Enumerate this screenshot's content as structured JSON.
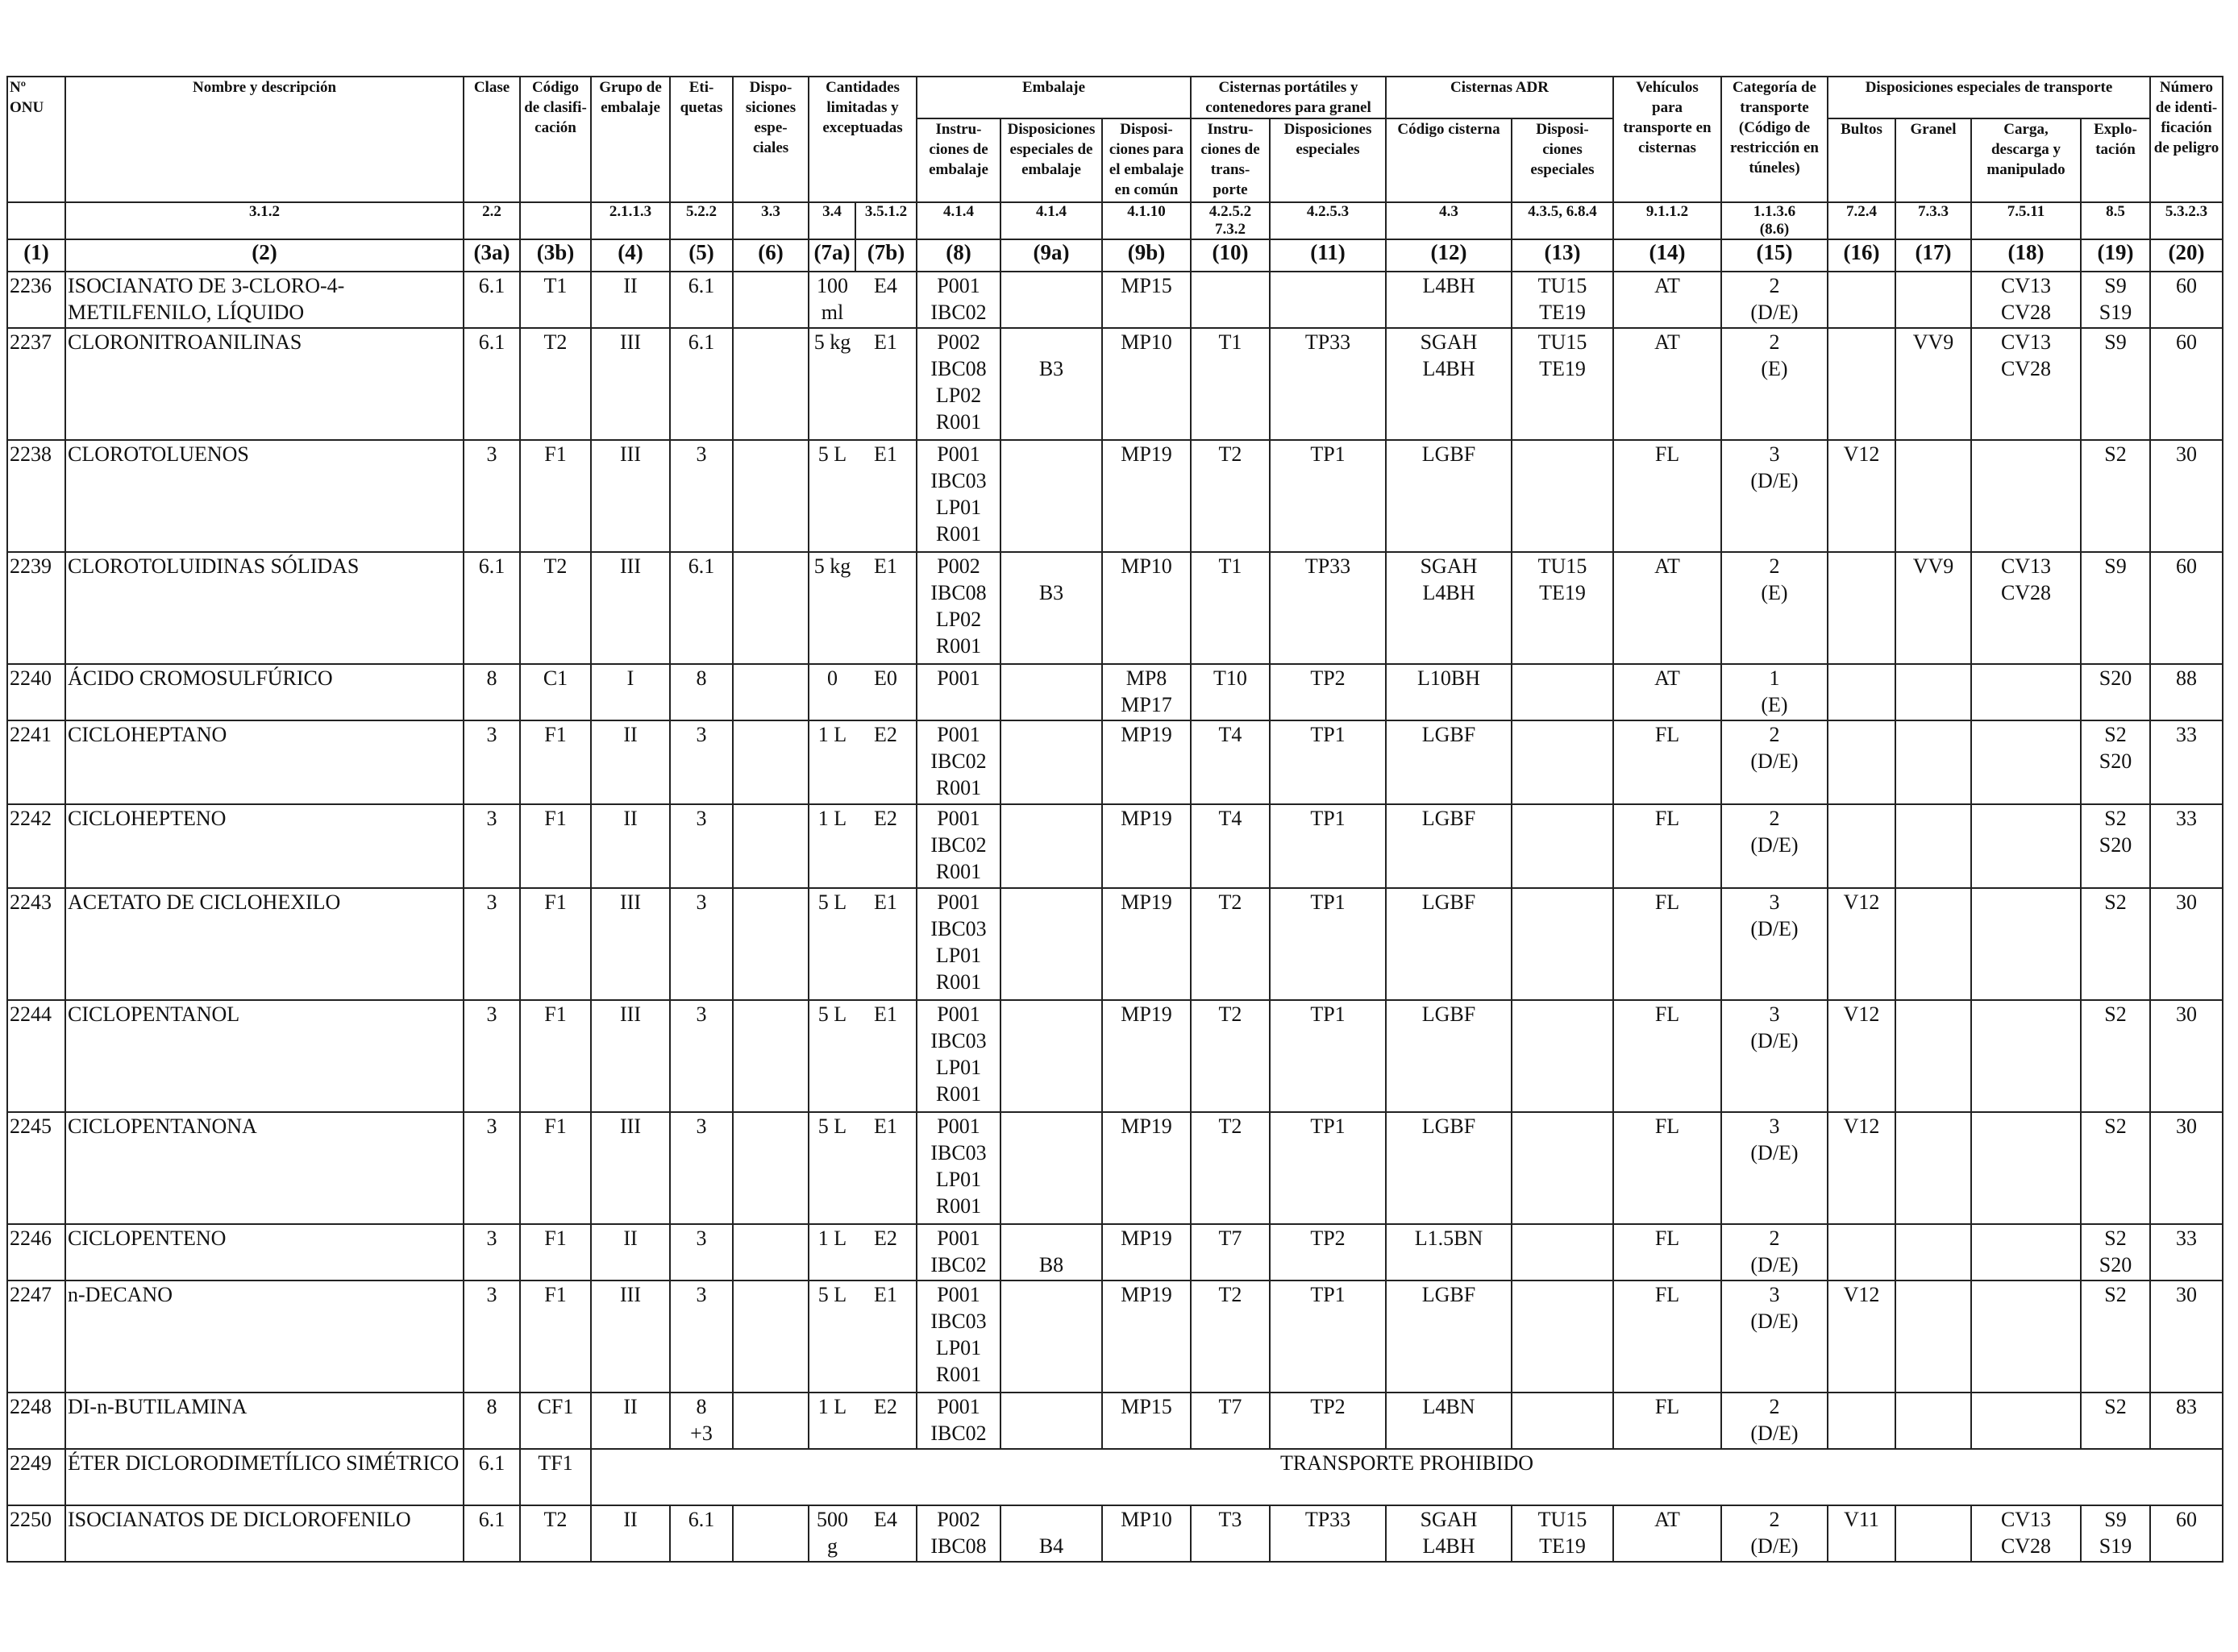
{
  "headers": {
    "onu": "Nº\nONU",
    "name": "Nombre y descripción",
    "clase": "Clase",
    "codigo": "Código\nde clasifi-\ncación",
    "grupo": "Grupo de\nembalaje",
    "etiquetas": "Eti-\nquetas",
    "disp_esp": "Dispo-\nsiciones\nespe-\nciales",
    "cantidades": "Cantidades\nlimitadas y\nexceptuadas",
    "embalaje": "Embalaje",
    "instr_emb": "Instru-\nciones de\nembalaje",
    "disp_emb": "Disposiciones\nespeciales de\nembalaje",
    "disp_comun": "Disposi-\nciones para\nel embalaje\nen común",
    "cisternas_port": "Cisternas portátiles y\ncontenedores para granel",
    "instr_trans": "Instru-\nciones de\ntrans-\nporte",
    "disp_cist": "Disposiciones\nespeciales",
    "cisternas_adr": "Cisternas ADR",
    "cod_cisterna": "Código cisterna",
    "disp_cist_adr": "Disposi-\nciones\nespeciales",
    "vehiculos": "Vehículos\npara\ntransporte en\ncisternas",
    "categoria": "Categoría de\ntransporte\n(Código de\nrestricción en\ntúneles)",
    "disp_transporte": "Disposiciones especiales de transporte",
    "bultos": "Bultos",
    "granel": "Granel",
    "carga": "Carga,\ndescarga y\nmanipulado",
    "explotacion": "Explo-\ntación",
    "numero_id": "Número\nde identi-\nficación\nde peligro"
  },
  "refs": [
    "",
    "3.1.2",
    "2.2",
    "",
    "2.1.1.3",
    "5.2.2",
    "3.3",
    "3.4",
    "3.5.1.2",
    "4.1.4",
    "4.1.4",
    "4.1.10",
    "4.2.5.2\n7.3.2",
    "4.2.5.3",
    "4.3",
    "4.3.5, 6.8.4",
    "9.1.1.2",
    "1.1.3.6\n(8.6)",
    "7.2.4",
    "7.3.3",
    "7.5.11",
    "8.5",
    "5.3.2.3"
  ],
  "column_numbers": [
    "(1)",
    "(2)",
    "(3a)",
    "(3b)",
    "(4)",
    "(5)",
    "(6)",
    "(7a)",
    "(7b)",
    "(8)",
    "(9a)",
    "(9b)",
    "(10)",
    "(11)",
    "(12)",
    "(13)",
    "(14)",
    "(15)",
    "(16)",
    "(17)",
    "(18)",
    "(19)",
    "(20)"
  ],
  "prohibited_text": "TRANSPORTE PROHIBIDO",
  "rows": [
    {
      "c1": "2236",
      "c2": "ISOCIANATO DE 3-CLORO-4-\nMETILFENILO, LÍQUIDO",
      "c3a": "6.1",
      "c3b": "T1",
      "c4": "II",
      "c5": "6.1",
      "c6": "",
      "c7a": "100\nml",
      "c7b": "E4",
      "c8": "P001\nIBC02",
      "c9a": "",
      "c9b": "MP15",
      "c10": "",
      "c11": "",
      "c12": "L4BH",
      "c13": "TU15\nTE19",
      "c14": "AT",
      "c15": "2\n(D/E)",
      "c16": "",
      "c17": "",
      "c18": "CV13\nCV28",
      "c19": "S9\nS19",
      "c20": "60"
    },
    {
      "c1": "2237",
      "c2": "CLORONITROANILINAS",
      "c3a": "6.1",
      "c3b": "T2",
      "c4": "III",
      "c5": "6.1",
      "c6": "",
      "c7a": "5 kg",
      "c7b": "E1",
      "c8": "P002\nIBC08\nLP02\nR001",
      "c9a": "\nB3",
      "c9b": "MP10",
      "c10": "T1",
      "c11": "TP33",
      "c12": "SGAH\nL4BH",
      "c13": "TU15\nTE19",
      "c14": "AT",
      "c15": "2\n(E)",
      "c16": "",
      "c17": "VV9",
      "c18": "CV13\nCV28",
      "c19": "S9",
      "c20": "60"
    },
    {
      "c1": "2238",
      "c2": "CLOROTOLUENOS",
      "c3a": "3",
      "c3b": "F1",
      "c4": "III",
      "c5": "3",
      "c6": "",
      "c7a": "5 L",
      "c7b": "E1",
      "c8": "P001\nIBC03\nLP01\nR001",
      "c9a": "",
      "c9b": "MP19",
      "c10": "T2",
      "c11": "TP1",
      "c12": "LGBF",
      "c13": "",
      "c14": "FL",
      "c15": "3\n(D/E)",
      "c16": "V12",
      "c17": "",
      "c18": "",
      "c19": "S2",
      "c20": "30"
    },
    {
      "c1": "2239",
      "c2": "CLOROTOLUIDINAS SÓLIDAS",
      "c3a": "6.1",
      "c3b": "T2",
      "c4": "III",
      "c5": "6.1",
      "c6": "",
      "c7a": "5 kg",
      "c7b": "E1",
      "c8": "P002\nIBC08\nLP02\nR001",
      "c9a": "\nB3",
      "c9b": "MP10",
      "c10": "T1",
      "c11": "TP33",
      "c12": "SGAH\nL4BH",
      "c13": "TU15\nTE19",
      "c14": "AT",
      "c15": "2\n(E)",
      "c16": "",
      "c17": "VV9",
      "c18": "CV13\nCV28",
      "c19": "S9",
      "c20": "60"
    },
    {
      "c1": "2240",
      "c2": "ÁCIDO CROMOSULFÚRICO",
      "c3a": "8",
      "c3b": "C1",
      "c4": "I",
      "c5": "8",
      "c6": "",
      "c7a": "0",
      "c7b": "E0",
      "c8": "P001",
      "c9a": "",
      "c9b": "MP8\nMP17",
      "c10": "T10",
      "c11": "TP2",
      "c12": "L10BH",
      "c13": "",
      "c14": "AT",
      "c15": "1\n(E)",
      "c16": "",
      "c17": "",
      "c18": "",
      "c19": "S20",
      "c20": "88"
    },
    {
      "c1": "2241",
      "c2": "CICLOHEPTANO",
      "c3a": "3",
      "c3b": "F1",
      "c4": "II",
      "c5": "3",
      "c6": "",
      "c7a": "1 L",
      "c7b": "E2",
      "c8": "P001\nIBC02\nR001",
      "c9a": "",
      "c9b": "MP19",
      "c10": "T4",
      "c11": "TP1",
      "c12": "LGBF",
      "c13": "",
      "c14": "FL",
      "c15": "2\n(D/E)",
      "c16": "",
      "c17": "",
      "c18": "",
      "c19": "S2\nS20",
      "c20": "33"
    },
    {
      "c1": "2242",
      "c2": "CICLOHEPTENO",
      "c3a": "3",
      "c3b": "F1",
      "c4": "II",
      "c5": "3",
      "c6": "",
      "c7a": "1 L",
      "c7b": "E2",
      "c8": "P001\nIBC02\nR001",
      "c9a": "",
      "c9b": "MP19",
      "c10": "T4",
      "c11": "TP1",
      "c12": "LGBF",
      "c13": "",
      "c14": "FL",
      "c15": "2\n(D/E)",
      "c16": "",
      "c17": "",
      "c18": "",
      "c19": "S2\nS20",
      "c20": "33"
    },
    {
      "c1": "2243",
      "c2": "ACETATO DE CICLOHEXILO",
      "c3a": "3",
      "c3b": "F1",
      "c4": "III",
      "c5": "3",
      "c6": "",
      "c7a": "5 L",
      "c7b": "E1",
      "c8": "P001\nIBC03\nLP01\nR001",
      "c9a": "",
      "c9b": "MP19",
      "c10": "T2",
      "c11": "TP1",
      "c12": "LGBF",
      "c13": "",
      "c14": "FL",
      "c15": "3\n(D/E)",
      "c16": "V12",
      "c17": "",
      "c18": "",
      "c19": "S2",
      "c20": "30"
    },
    {
      "c1": "2244",
      "c2": "CICLOPENTANOL",
      "c3a": "3",
      "c3b": "F1",
      "c4": "III",
      "c5": "3",
      "c6": "",
      "c7a": "5 L",
      "c7b": "E1",
      "c8": "P001\nIBC03\nLP01\nR001",
      "c9a": "",
      "c9b": "MP19",
      "c10": "T2",
      "c11": "TP1",
      "c12": "LGBF",
      "c13": "",
      "c14": "FL",
      "c15": "3\n(D/E)",
      "c16": "V12",
      "c17": "",
      "c18": "",
      "c19": "S2",
      "c20": "30"
    },
    {
      "c1": "2245",
      "c2": "CICLOPENTANONA",
      "c3a": "3",
      "c3b": "F1",
      "c4": "III",
      "c5": "3",
      "c6": "",
      "c7a": "5 L",
      "c7b": "E1",
      "c8": "P001\nIBC03\nLP01\nR001",
      "c9a": "",
      "c9b": "MP19",
      "c10": "T2",
      "c11": "TP1",
      "c12": "LGBF",
      "c13": "",
      "c14": "FL",
      "c15": "3\n(D/E)",
      "c16": "V12",
      "c17": "",
      "c18": "",
      "c19": "S2",
      "c20": "30"
    },
    {
      "c1": "2246",
      "c2": "CICLOPENTENO",
      "c3a": "3",
      "c3b": "F1",
      "c4": "II",
      "c5": "3",
      "c6": "",
      "c7a": "1 L",
      "c7b": "E2",
      "c8": "P001\nIBC02",
      "c9a": "\nB8",
      "c9b": "MP19",
      "c10": "T7",
      "c11": "TP2",
      "c12": "L1.5BN",
      "c13": "",
      "c14": "FL",
      "c15": "2\n(D/E)",
      "c16": "",
      "c17": "",
      "c18": "",
      "c19": "S2\nS20",
      "c20": "33"
    },
    {
      "c1": "2247",
      "c2": "n-DECANO",
      "c3a": "3",
      "c3b": "F1",
      "c4": "III",
      "c5": "3",
      "c6": "",
      "c7a": "5 L",
      "c7b": "E1",
      "c8": "P001\nIBC03\nLP01\nR001",
      "c9a": "",
      "c9b": "MP19",
      "c10": "T2",
      "c11": "TP1",
      "c12": "LGBF",
      "c13": "",
      "c14": "FL",
      "c15": "3\n(D/E)",
      "c16": "V12",
      "c17": "",
      "c18": "",
      "c19": "S2",
      "c20": "30"
    },
    {
      "c1": "2248",
      "c2": "DI-n-BUTILAMINA",
      "c3a": "8",
      "c3b": "CF1",
      "c4": "II",
      "c5": "8\n+3",
      "c6": "",
      "c7a": "1 L",
      "c7b": "E2",
      "c8": "P001\nIBC02",
      "c9a": "",
      "c9b": "MP15",
      "c10": "T7",
      "c11": "TP2",
      "c12": "L4BN",
      "c13": "",
      "c14": "FL",
      "c15": "2\n(D/E)",
      "c16": "",
      "c17": "",
      "c18": "",
      "c19": "S2",
      "c20": "83"
    },
    {
      "c1": "2249",
      "c2": "ÉTER DICLORODIMETÍLICO SIMÉTRICO",
      "c3a": "6.1",
      "c3b": "TF1",
      "prohibited": true
    },
    {
      "c1": "2250",
      "c2": "ISOCIANATOS DE DICLOROFENILO",
      "c3a": "6.1",
      "c3b": "T2",
      "c4": "II",
      "c5": "6.1",
      "c6": "",
      "c7a": "500\ng",
      "c7b": "E4",
      "c8": "P002\nIBC08",
      "c9a": "\nB4",
      "c9b": "MP10",
      "c10": "T3",
      "c11": "TP33",
      "c12": "SGAH\nL4BH",
      "c13": "TU15\nTE19",
      "c14": "AT",
      "c15": "2\n(D/E)",
      "c16": "V11",
      "c17": "",
      "c18": "CV13\nCV28",
      "c19": "S9\nS19",
      "c20": "60"
    }
  ]
}
